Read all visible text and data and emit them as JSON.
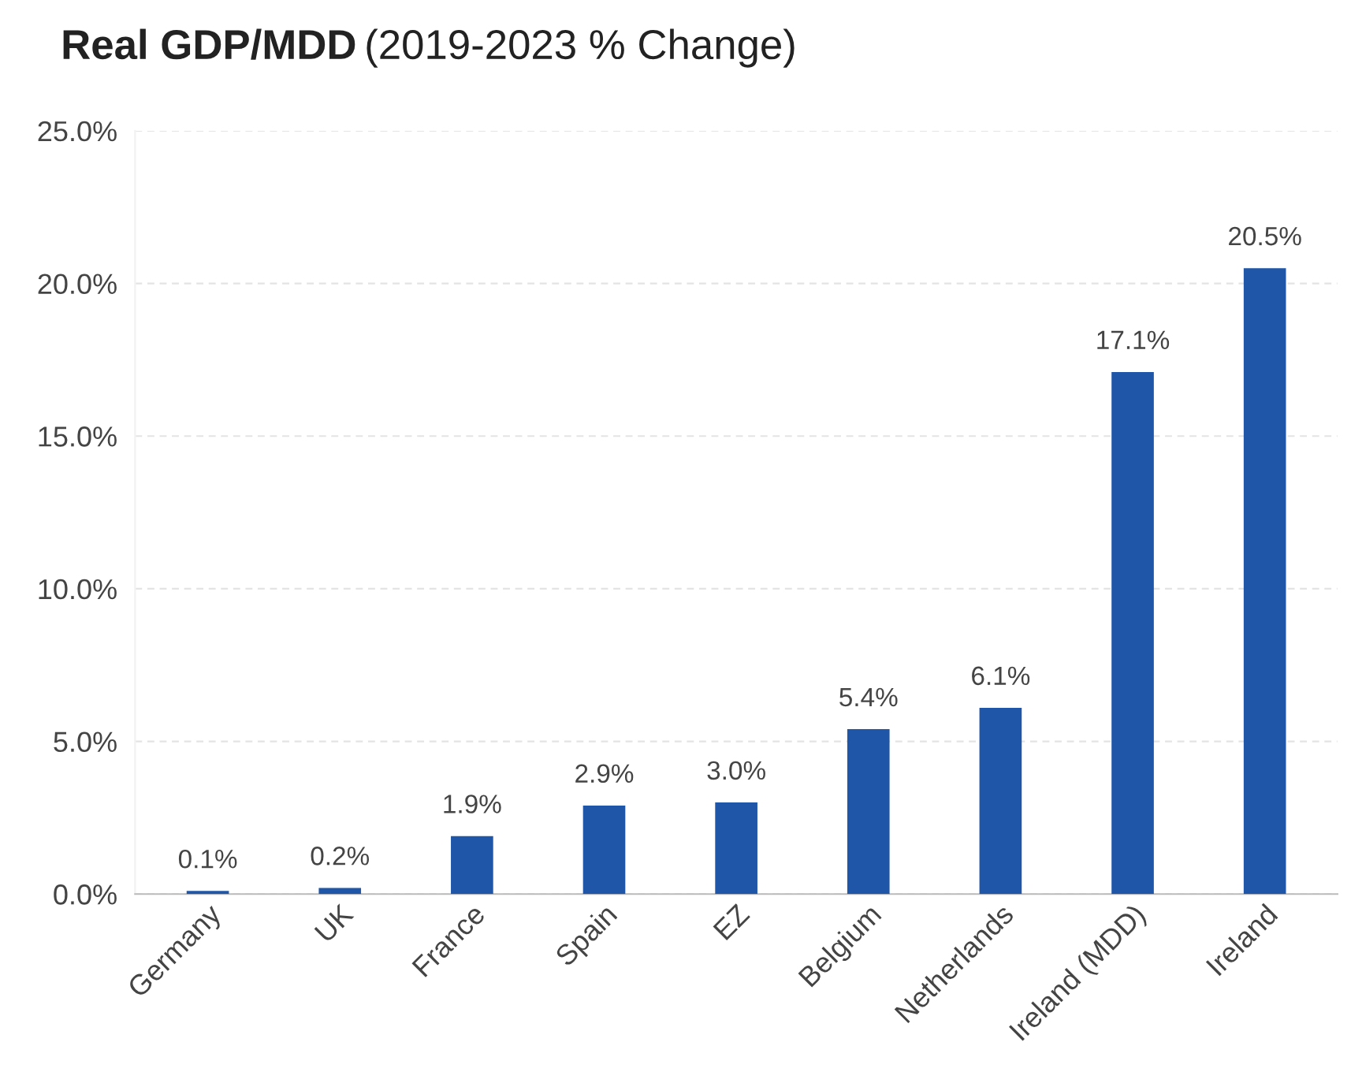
{
  "chart_data": {
    "type": "bar",
    "title": "Real GDP/MDD",
    "subtitle": "(2019-2023 % Change)",
    "categories": [
      "Germany",
      "UK",
      "France",
      "Spain",
      "EZ",
      "Belgium",
      "Netherlands",
      "Ireland (MDD)",
      "Ireland"
    ],
    "values": [
      0.1,
      0.2,
      1.9,
      2.9,
      3.0,
      5.4,
      6.1,
      17.1,
      20.5
    ],
    "value_labels": [
      "0.1%",
      "0.2%",
      "1.9%",
      "2.9%",
      "3.0%",
      "5.4%",
      "6.1%",
      "17.1%",
      "20.5%"
    ],
    "color": "#1f56a8",
    "ylim": [
      0,
      25
    ],
    "yticks": [
      {
        "value": 0,
        "label": "0.0%"
      },
      {
        "value": 5,
        "label": "5.0%"
      },
      {
        "value": 10,
        "label": "10.0%"
      },
      {
        "value": 15,
        "label": "15.0%"
      },
      {
        "value": 20,
        "label": "20.0%"
      },
      {
        "value": 25,
        "label": "25.0%"
      }
    ],
    "grid": "y",
    "legend": false
  }
}
